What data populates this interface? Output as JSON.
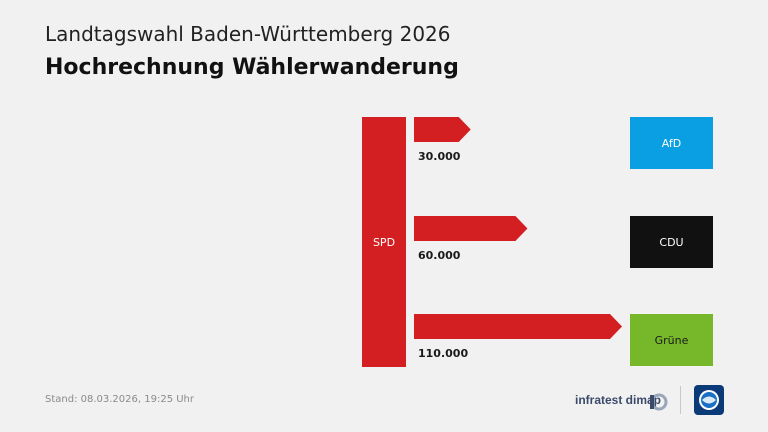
{
  "header": {
    "title": "Landtagswahl Baden-Württemberg 2026",
    "subtitle": "Hochrechnung Wählerwanderung"
  },
  "chart_data": {
    "type": "bar",
    "source": "SPD",
    "categories": [
      "AfD",
      "CDU",
      "Grüne"
    ],
    "values": [
      30000,
      60000,
      110000
    ],
    "value_labels": [
      "30.000",
      "60.000",
      "110.000"
    ],
    "colors": {
      "source": "#d41f22",
      "flow": "#d41f22",
      "AfD": "#0a9ee2",
      "CDU": "#111111",
      "Grüne": "#76b82a"
    }
  },
  "footer": {
    "stand": "Stand:  08.03.2026, 19:25 Uhr",
    "brand": "infratest dimap"
  },
  "icons": {
    "brand_mark": "infratest-dimap-logo-icon",
    "ard": "tagesschau-logo-icon"
  }
}
